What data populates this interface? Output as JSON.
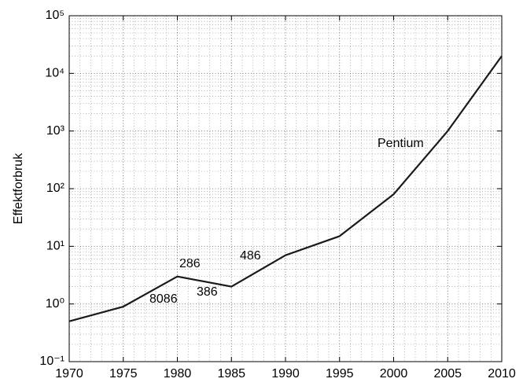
{
  "chart_data": {
    "type": "line",
    "y_label": "Effektforbruk",
    "x": [
      1970,
      1975,
      1980,
      1985,
      1990,
      1995,
      2000,
      2005,
      2010
    ],
    "series": [
      {
        "name": "Effektforbruk",
        "color": "#1a1a1a",
        "values": [
          0.5,
          0.9,
          3,
          2,
          7,
          15,
          80,
          1000,
          20000
        ]
      }
    ],
    "xlim": [
      1970,
      2010
    ],
    "xticks": [
      1970,
      1975,
      1980,
      1985,
      1990,
      1995,
      2000,
      2005,
      2010
    ],
    "ylim": [
      0.1,
      100000
    ],
    "yticks": [
      {
        "value": 0.1,
        "label": "10⁻¹"
      },
      {
        "value": 1,
        "label": "10⁰"
      },
      {
        "value": 10,
        "label": "10¹"
      },
      {
        "value": 100,
        "label": "10²"
      },
      {
        "value": 1000,
        "label": "10³"
      },
      {
        "value": 10000,
        "label": "10⁴"
      },
      {
        "value": 100000,
        "label": "10⁵"
      }
    ],
    "y_log": true,
    "grid": true,
    "annotations": [
      "8086",
      "286",
      "386",
      "486",
      "Pentium"
    ]
  }
}
